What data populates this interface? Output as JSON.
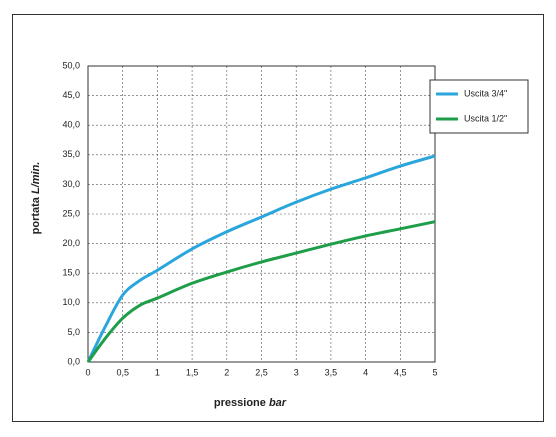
{
  "chart_data": {
    "type": "line",
    "xlabel": "pressione",
    "xunit": "bar",
    "ylabel": "portata",
    "yunit": "L/min.",
    "x": [
      0,
      0.25,
      0.5,
      0.75,
      1,
      1.5,
      2,
      2.5,
      3,
      3.5,
      4,
      4.5,
      5
    ],
    "series": [
      {
        "name": "Uscita 3/4\"",
        "color": "#2aa6dd",
        "values": [
          0,
          6,
          11.3,
          13.8,
          15.5,
          19.1,
          22,
          24.5,
          27,
          29.2,
          31.1,
          33.1,
          34.8
        ]
      },
      {
        "name": "Uscita 1/2\"",
        "color": "#1e9e48",
        "values": [
          0,
          4,
          7.4,
          9.6,
          10.8,
          13.3,
          15.2,
          16.9,
          18.4,
          19.9,
          21.3,
          22.5,
          23.7
        ]
      }
    ],
    "xlim": [
      0,
      5
    ],
    "xticks": [
      0,
      {
        "value": 0.5,
        "label": "0,5"
      },
      1,
      {
        "value": 1.5,
        "label": "1,5"
      },
      2,
      {
        "value": 2.5,
        "label": "2,5"
      },
      3,
      {
        "value": 3.5,
        "label": "3,5"
      },
      4,
      {
        "value": 4.5,
        "label": "4,5"
      },
      5
    ],
    "ylim": [
      0,
      50
    ],
    "yticks": [
      {
        "value": 0,
        "label": "0,0"
      },
      {
        "value": 5,
        "label": "5,0"
      },
      {
        "value": 10,
        "label": "10,0"
      },
      {
        "value": 15,
        "label": "15,0"
      },
      {
        "value": 20,
        "label": "20,0"
      },
      {
        "value": 25,
        "label": "25,0"
      },
      {
        "value": 30,
        "label": "30,0"
      },
      {
        "value": 35,
        "label": "35,0"
      },
      {
        "value": 40,
        "label": "40,0"
      },
      {
        "value": 45,
        "label": "45,0"
      },
      {
        "value": 50,
        "label": "50,0"
      }
    ],
    "grid": true,
    "legend": "upper right"
  }
}
